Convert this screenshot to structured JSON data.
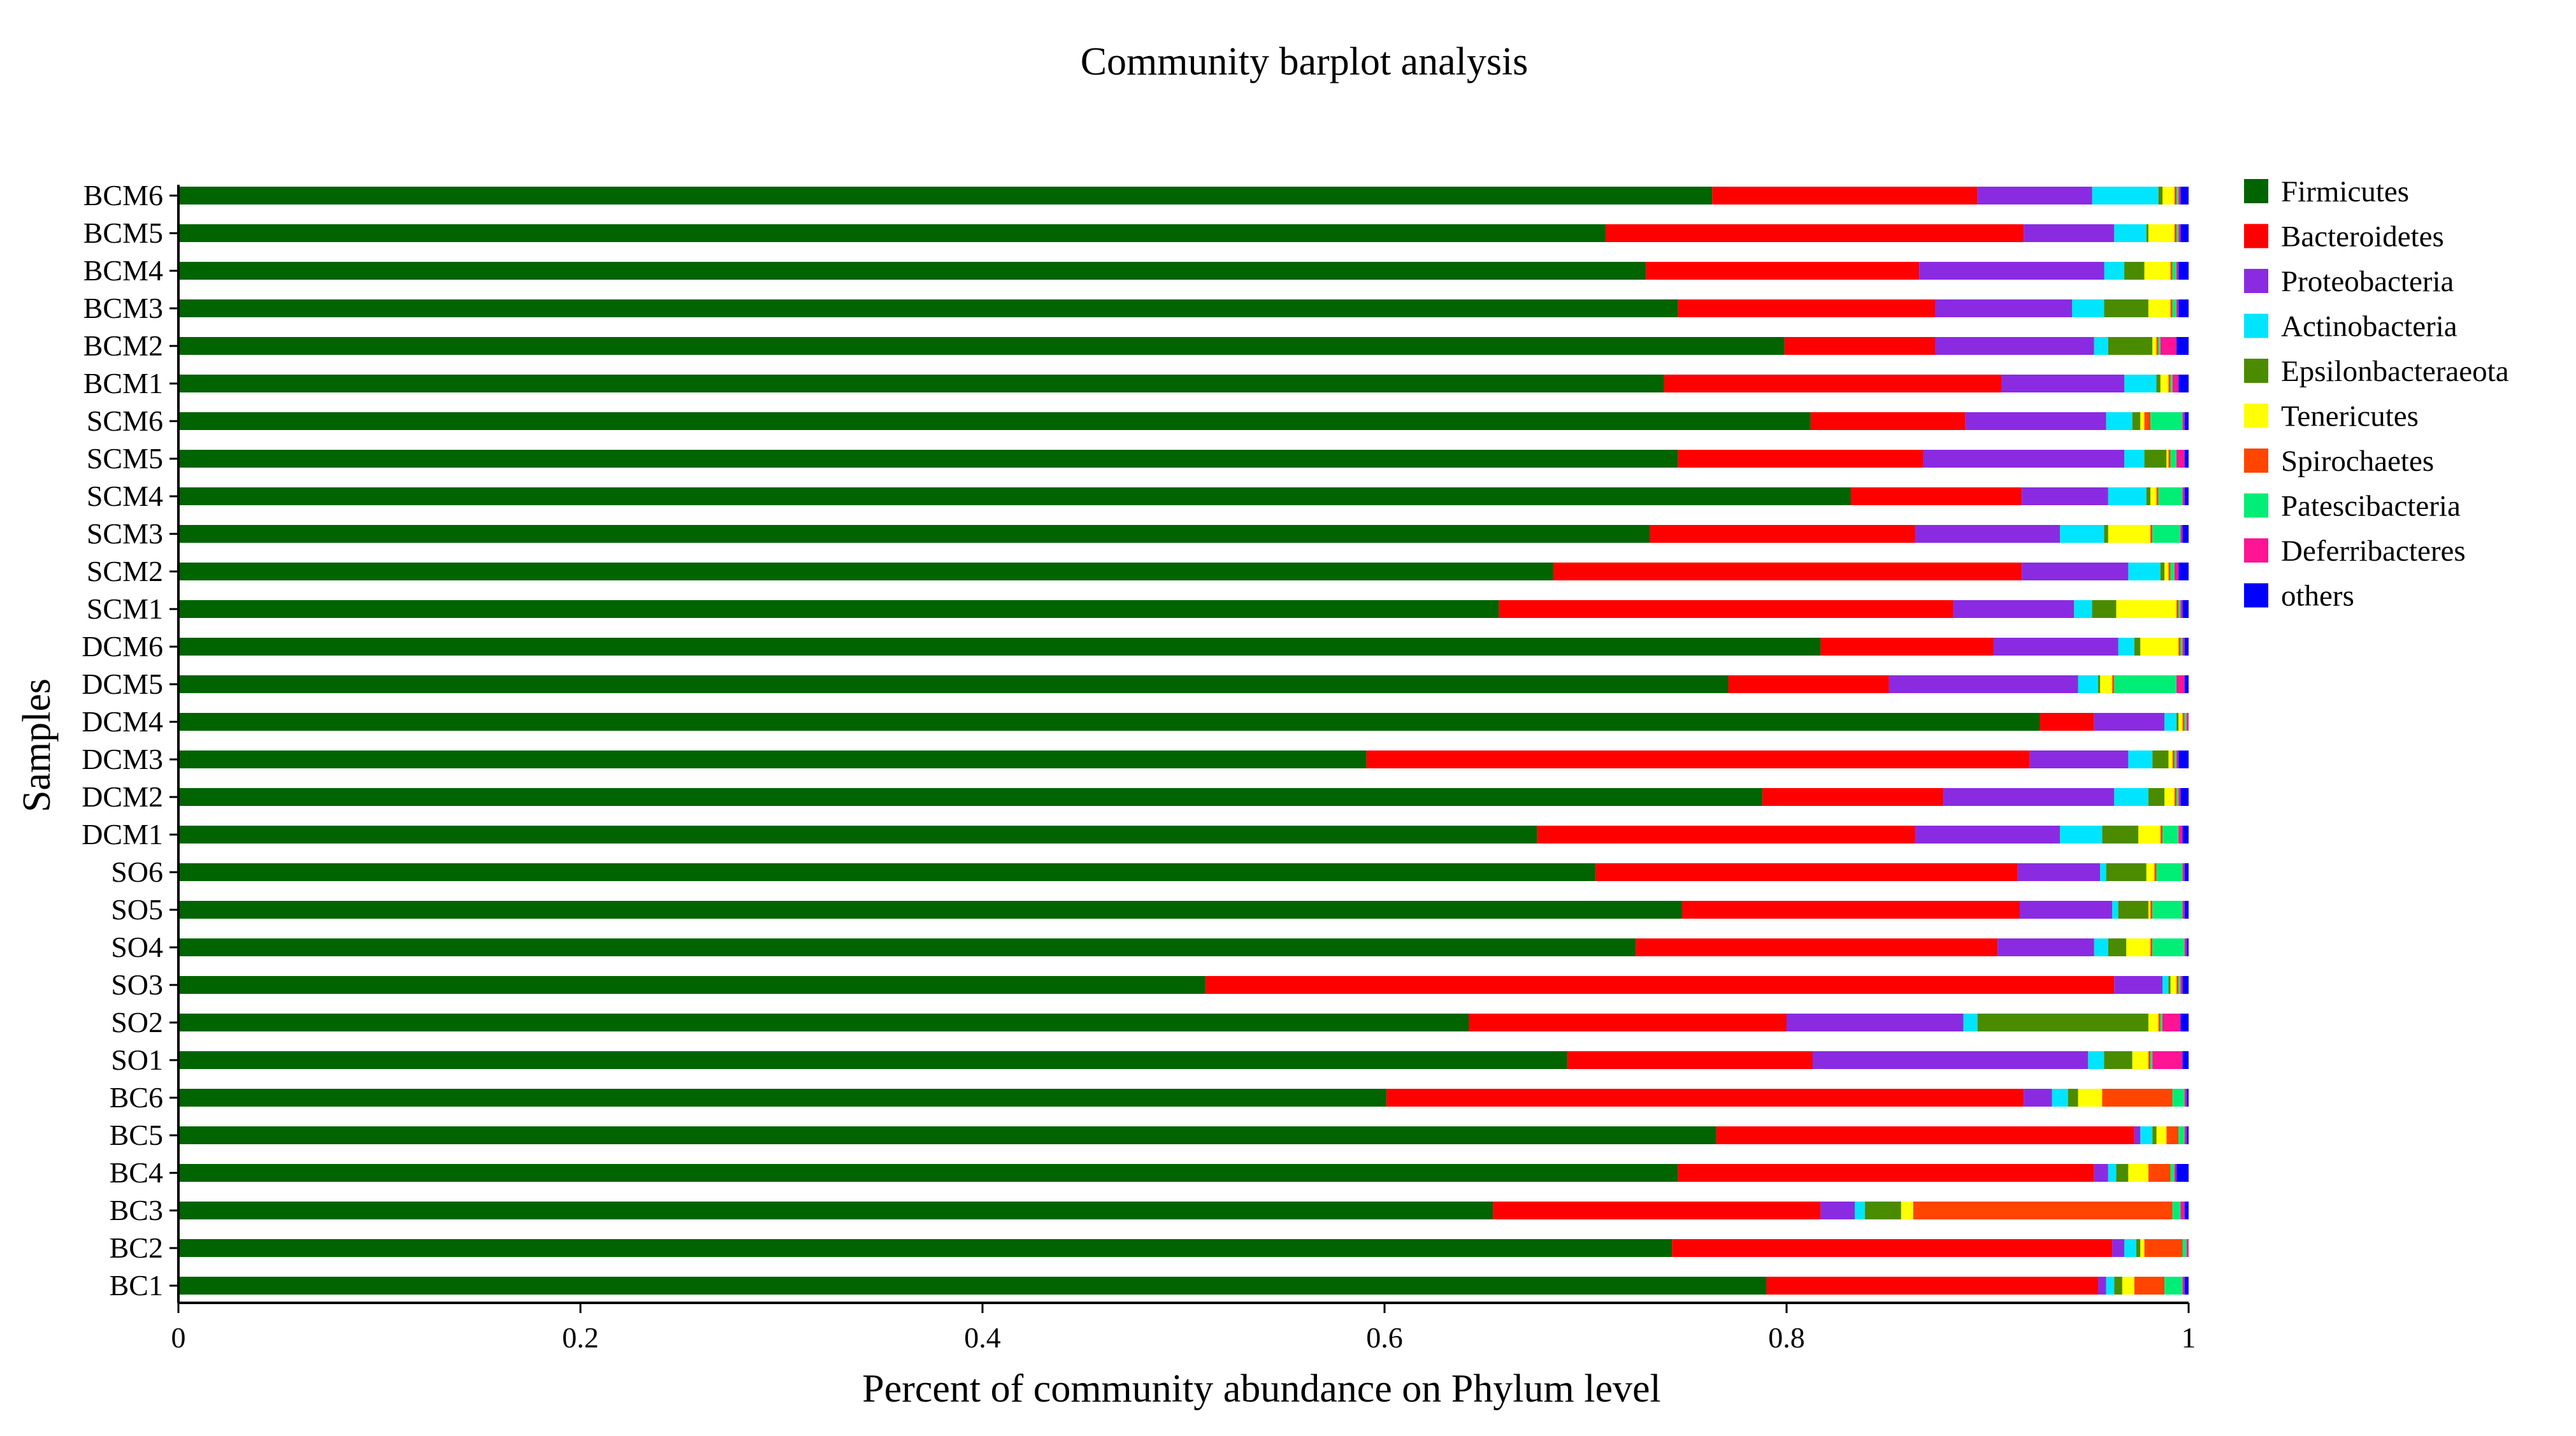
{
  "chart_data": {
    "type": "bar",
    "orientation": "horizontal",
    "stacked": true,
    "title": "Community barplot analysis",
    "xlabel": "Percent of community abundance on Phylum level",
    "ylabel": "Samples",
    "xlim": [
      0,
      1
    ],
    "xticks": [
      "0",
      "0.2",
      "0.4",
      "0.6",
      "0.8",
      "1"
    ],
    "grid": false,
    "legend_position": "right",
    "categories": [
      "BCM6",
      "BCM5",
      "BCM4",
      "BCM3",
      "BCM2",
      "BCM1",
      "SCM6",
      "SCM5",
      "SCM4",
      "SCM3",
      "SCM2",
      "SCM1",
      "DCM6",
      "DCM5",
      "DCM4",
      "DCM3",
      "DCM2",
      "DCM1",
      "SO6",
      "SO5",
      "SO4",
      "SO3",
      "SO2",
      "SO1",
      "BC6",
      "BC5",
      "BC4",
      "BC3",
      "BC2",
      "BC1"
    ],
    "series": [
      {
        "name": "Firmicutes",
        "color": "#006400",
        "values": [
          0.763,
          0.71,
          0.73,
          0.746,
          0.799,
          0.739,
          0.812,
          0.746,
          0.832,
          0.732,
          0.684,
          0.657,
          0.817,
          0.771,
          0.926,
          0.591,
          0.788,
          0.676,
          0.705,
          0.748,
          0.725,
          0.511,
          0.642,
          0.691,
          0.601,
          0.765,
          0.746,
          0.654,
          0.743,
          0.79
        ]
      },
      {
        "name": "Bacteroidetes",
        "color": "#ff0000",
        "values": [
          0.132,
          0.208,
          0.136,
          0.128,
          0.075,
          0.168,
          0.077,
          0.122,
          0.085,
          0.132,
          0.233,
          0.226,
          0.086,
          0.08,
          0.027,
          0.33,
          0.09,
          0.188,
          0.21,
          0.168,
          0.18,
          0.452,
          0.158,
          0.122,
          0.317,
          0.208,
          0.207,
          0.163,
          0.219,
          0.165
        ]
      },
      {
        "name": "Proteobacteria",
        "color": "#8a2be2",
        "values": [
          0.057,
          0.045,
          0.092,
          0.068,
          0.079,
          0.061,
          0.07,
          0.1,
          0.043,
          0.072,
          0.053,
          0.06,
          0.062,
          0.094,
          0.035,
          0.049,
          0.085,
          0.072,
          0.041,
          0.046,
          0.048,
          0.024,
          0.088,
          0.137,
          0.014,
          0.003,
          0.007,
          0.017,
          0.006,
          0.004
        ]
      },
      {
        "name": "Actinobacteria",
        "color": "#00e5ff",
        "values": [
          0.033,
          0.016,
          0.01,
          0.016,
          0.007,
          0.016,
          0.013,
          0.01,
          0.019,
          0.022,
          0.016,
          0.009,
          0.008,
          0.01,
          0.006,
          0.012,
          0.017,
          0.021,
          0.003,
          0.003,
          0.007,
          0.003,
          0.007,
          0.008,
          0.008,
          0.006,
          0.004,
          0.005,
          0.006,
          0.004
        ]
      },
      {
        "name": "Epsilonbacteraeota",
        "color": "#4b8b00",
        "values": [
          0.002,
          0.001,
          0.01,
          0.022,
          0.022,
          0.002,
          0.004,
          0.011,
          0.002,
          0.002,
          0.002,
          0.012,
          0.003,
          0.001,
          0.001,
          0.008,
          0.008,
          0.018,
          0.02,
          0.015,
          0.009,
          0.001,
          0.085,
          0.014,
          0.005,
          0.002,
          0.006,
          0.018,
          0.002,
          0.004
        ]
      },
      {
        "name": "Tenericutes",
        "color": "#ffff00",
        "values": [
          0.006,
          0.013,
          0.013,
          0.011,
          0.002,
          0.004,
          0.002,
          0.001,
          0.003,
          0.021,
          0.002,
          0.03,
          0.019,
          0.006,
          0.002,
          0.002,
          0.005,
          0.011,
          0.004,
          0.001,
          0.012,
          0.003,
          0.005,
          0.008,
          0.012,
          0.005,
          0.01,
          0.006,
          0.002,
          0.006
        ]
      },
      {
        "name": "Spirochaetes",
        "color": "#ff4500",
        "values": [
          0.001,
          0.001,
          0.001,
          0.001,
          0.001,
          0.001,
          0.003,
          0.001,
          0.001,
          0.001,
          0.001,
          0.001,
          0.001,
          0.001,
          0.001,
          0.001,
          0.001,
          0.001,
          0.001,
          0.001,
          0.001,
          0.001,
          0.001,
          0.001,
          0.035,
          0.006,
          0.011,
          0.129,
          0.019,
          0.015
        ]
      },
      {
        "name": "Patescibacteria",
        "color": "#00ee76",
        "values": [
          0.001,
          0.001,
          0.002,
          0.002,
          0.001,
          0.001,
          0.016,
          0.003,
          0.012,
          0.014,
          0.002,
          0.001,
          0.001,
          0.031,
          0.001,
          0.001,
          0.001,
          0.008,
          0.013,
          0.015,
          0.016,
          0.001,
          0.001,
          0.001,
          0.006,
          0.003,
          0.002,
          0.004,
          0.002,
          0.009
        ]
      },
      {
        "name": "Deferribacteres",
        "color": "#ff1493",
        "values": [
          0.001,
          0.001,
          0.001,
          0.001,
          0.008,
          0.003,
          0.001,
          0.004,
          0.001,
          0.001,
          0.002,
          0.001,
          0.001,
          0.004,
          0.001,
          0.001,
          0.001,
          0.002,
          0.001,
          0.001,
          0.001,
          0.001,
          0.009,
          0.015,
          0.001,
          0.001,
          0.001,
          0.002,
          0.001,
          0.001
        ]
      },
      {
        "name": "others",
        "color": "#0000ff",
        "values": [
          0.004,
          0.004,
          0.005,
          0.005,
          0.006,
          0.005,
          0.002,
          0.002,
          0.002,
          0.003,
          0.005,
          0.003,
          0.002,
          0.002,
          0.0,
          0.005,
          0.004,
          0.003,
          0.002,
          0.002,
          0.001,
          0.003,
          0.004,
          0.003,
          0.001,
          0.001,
          0.006,
          0.002,
          0.0,
          0.002
        ]
      }
    ]
  }
}
